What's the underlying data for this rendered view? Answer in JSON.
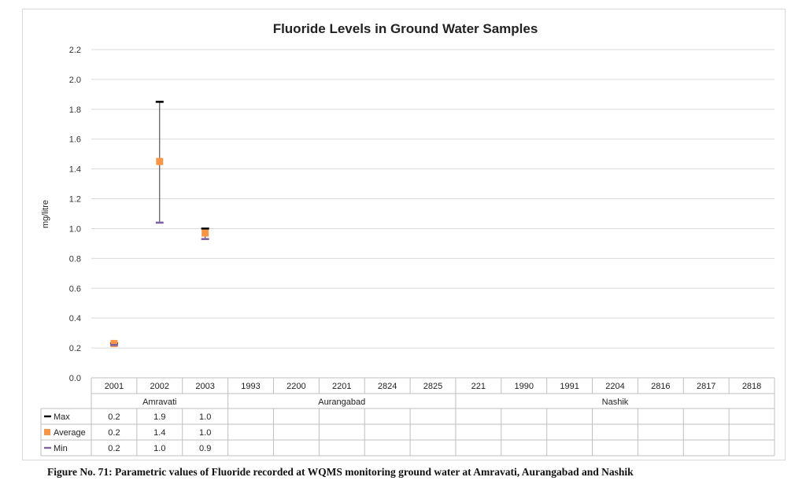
{
  "caption": "Figure No. 71: Parametric values of Fluoride recorded at WQMS monitoring ground water at Amravati, Aurangabad and Nashik",
  "chart_data": {
    "type": "scatter",
    "title": "Fluoride Levels in Ground Water Samples",
    "xlabel": "",
    "ylabel": "mg/litre",
    "ylim": [
      0,
      2.2
    ],
    "ytick_step": 0.2,
    "yticks": [
      "0.0",
      "0.2",
      "0.4",
      "0.6",
      "0.8",
      "1.0",
      "1.2",
      "1.4",
      "1.6",
      "1.8",
      "2.0",
      "2.2"
    ],
    "grid": true,
    "legend": "data-table",
    "groups": [
      {
        "name": "Amravati",
        "categories": [
          "2001",
          "2002",
          "2003"
        ]
      },
      {
        "name": "Aurangabad",
        "categories": [
          "1993",
          "2200",
          "2201",
          "2824",
          "2825"
        ]
      },
      {
        "name": "Nashik",
        "categories": [
          "221",
          "1990",
          "1991",
          "2204",
          "2816",
          "2817",
          "2818"
        ]
      }
    ],
    "categories": [
      "2001",
      "2002",
      "2003",
      "1993",
      "2200",
      "2201",
      "2824",
      "2825",
      "221",
      "1990",
      "1991",
      "2204",
      "2816",
      "2817",
      "2818"
    ],
    "series": [
      {
        "name": "Max",
        "color": "#000000",
        "marker": "dash",
        "values": [
          0.23,
          1.85,
          1.0,
          null,
          null,
          null,
          null,
          null,
          null,
          null,
          null,
          null,
          null,
          null,
          null
        ],
        "labels": [
          "0.2",
          "1.9",
          "1.0",
          "",
          "",
          "",
          "",
          "",
          "",
          "",
          "",
          "",
          "",
          "",
          ""
        ]
      },
      {
        "name": "Average",
        "color": "#f79646",
        "marker": "square",
        "values": [
          0.23,
          1.45,
          0.97,
          null,
          null,
          null,
          null,
          null,
          null,
          null,
          null,
          null,
          null,
          null,
          null
        ],
        "labels": [
          "0.2",
          "1.4",
          "1.0",
          "",
          "",
          "",
          "",
          "",
          "",
          "",
          "",
          "",
          "",
          "",
          ""
        ]
      },
      {
        "name": "Min",
        "color": "#8064a2",
        "marker": "dash",
        "values": [
          0.22,
          1.04,
          0.93,
          null,
          null,
          null,
          null,
          null,
          null,
          null,
          null,
          null,
          null,
          null,
          null
        ],
        "labels": [
          "0.2",
          "1.0",
          "0.9",
          "",
          "",
          "",
          "",
          "",
          "",
          "",
          "",
          "",
          "",
          "",
          ""
        ]
      }
    ]
  }
}
